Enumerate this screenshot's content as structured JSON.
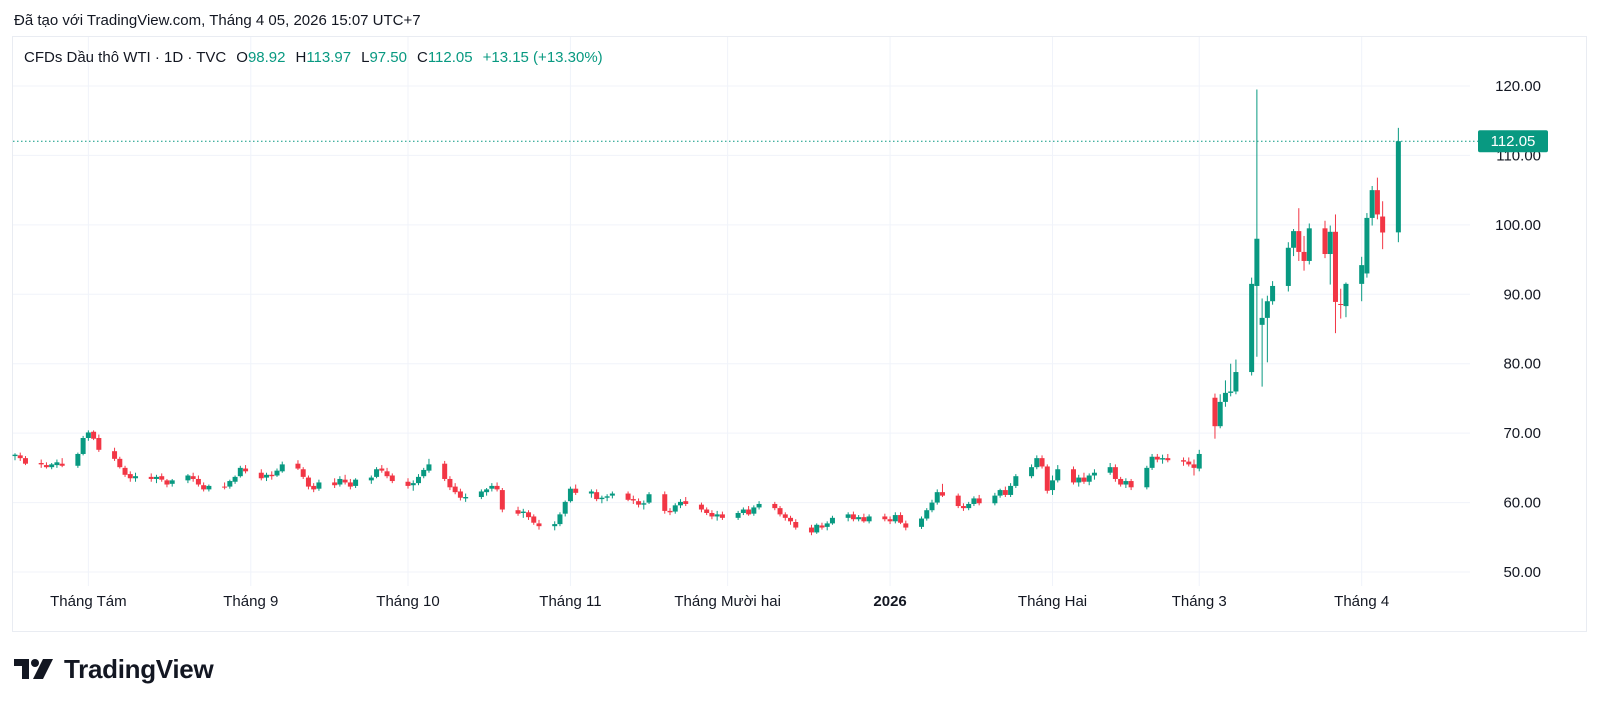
{
  "caption": "Đã tạo với TradingView.com, Tháng 4 05, 2026 15:07 UTC+7",
  "legend": {
    "symbol": "CFDs Dầu thô WTI · 1D · TVC",
    "open_label": "O",
    "open": "98.92",
    "high_label": "H",
    "high": "113.97",
    "low_label": "L",
    "low": "97.50",
    "close_label": "C",
    "close": "112.05",
    "change": "+13.15 (+13.30%)"
  },
  "last_price_label": "112.05",
  "brand": "TradingView",
  "colors": {
    "up": "#089981",
    "down": "#f23645",
    "grid": "#f0f3fa",
    "text": "#131722"
  },
  "chart_data": {
    "type": "candlestick",
    "ylim": [
      48,
      123
    ],
    "y_ticks": [
      "50.00",
      "60.00",
      "70.00",
      "80.00",
      "90.00",
      "100.00",
      "110.00",
      "120.00"
    ],
    "x_labels": [
      {
        "text": "Tháng Tám",
        "day": 14,
        "bold": false
      },
      {
        "text": "Tháng 9",
        "day": 45,
        "bold": false
      },
      {
        "text": "Tháng 10",
        "day": 75,
        "bold": false
      },
      {
        "text": "Tháng 11",
        "day": 106,
        "bold": false
      },
      {
        "text": "Tháng Mười hai",
        "day": 136,
        "bold": false
      },
      {
        "text": "2026",
        "day": 167,
        "bold": true
      },
      {
        "text": "Tháng Hai",
        "day": 198,
        "bold": false
      },
      {
        "text": "Tháng 3",
        "day": 226,
        "bold": false
      },
      {
        "text": "Tháng 4",
        "day": 257,
        "bold": false
      }
    ],
    "last_close": 112.05,
    "candles": [
      [
        0,
        66.7,
        67.1,
        66.1,
        66.9
      ],
      [
        1,
        66.8,
        67.2,
        66.0,
        66.4
      ],
      [
        2,
        66.4,
        66.7,
        65.4,
        65.6
      ],
      [
        5,
        65.7,
        66.2,
        65.0,
        65.5
      ],
      [
        6,
        65.4,
        65.8,
        64.9,
        65.1
      ],
      [
        7,
        65.1,
        65.7,
        64.8,
        65.5
      ],
      [
        8,
        65.4,
        66.2,
        65.0,
        65.8
      ],
      [
        9,
        65.6,
        66.4,
        65.1,
        65.3
      ],
      [
        12,
        65.3,
        67.2,
        65.0,
        67.0
      ],
      [
        13,
        67.0,
        69.6,
        66.8,
        69.3
      ],
      [
        14,
        69.3,
        70.4,
        68.9,
        70.1
      ],
      [
        15,
        70.2,
        70.4,
        69.0,
        69.2
      ],
      [
        16,
        69.3,
        69.8,
        67.3,
        67.6
      ],
      [
        19,
        67.4,
        67.9,
        66.0,
        66.3
      ],
      [
        20,
        66.3,
        66.6,
        64.9,
        65.1
      ],
      [
        21,
        65.0,
        65.3,
        63.7,
        64.0
      ],
      [
        22,
        64.1,
        64.5,
        63.0,
        63.5
      ],
      [
        23,
        63.5,
        64.3,
        63.0,
        63.8
      ],
      [
        26,
        63.7,
        64.2,
        63.0,
        63.4
      ],
      [
        27,
        63.4,
        64.0,
        62.8,
        63.7
      ],
      [
        28,
        63.8,
        64.2,
        63.0,
        63.3
      ],
      [
        29,
        63.2,
        63.4,
        62.2,
        62.6
      ],
      [
        30,
        62.7,
        63.4,
        62.3,
        63.2
      ],
      [
        33,
        63.2,
        64.1,
        62.8,
        63.9
      ],
      [
        34,
        63.8,
        64.3,
        63.0,
        63.4
      ],
      [
        35,
        63.4,
        63.9,
        62.3,
        62.6
      ],
      [
        36,
        62.5,
        62.9,
        61.6,
        61.9
      ],
      [
        37,
        61.9,
        62.6,
        61.6,
        62.4
      ],
      [
        40,
        62.3,
        62.9,
        61.9,
        62.2
      ],
      [
        41,
        62.3,
        63.3,
        62.0,
        63.1
      ],
      [
        42,
        63.0,
        63.9,
        62.7,
        63.7
      ],
      [
        43,
        63.8,
        65.3,
        63.6,
        65.0
      ],
      [
        44,
        64.9,
        65.4,
        64.2,
        64.5
      ],
      [
        47,
        64.3,
        64.8,
        63.2,
        63.5
      ],
      [
        48,
        63.6,
        64.3,
        63.1,
        64.0
      ],
      [
        49,
        64.0,
        64.5,
        63.3,
        63.8
      ],
      [
        50,
        63.9,
        64.9,
        63.7,
        64.6
      ],
      [
        51,
        64.5,
        65.9,
        64.3,
        65.5
      ],
      [
        54,
        65.6,
        66.1,
        64.7,
        64.9
      ],
      [
        55,
        64.8,
        65.1,
        63.4,
        63.7
      ],
      [
        56,
        63.6,
        63.9,
        61.9,
        62.3
      ],
      [
        57,
        62.4,
        62.8,
        61.5,
        61.9
      ],
      [
        58,
        62.0,
        63.3,
        61.7,
        62.9
      ],
      [
        61,
        62.9,
        63.5,
        62.1,
        62.5
      ],
      [
        62,
        62.6,
        63.8,
        62.3,
        63.4
      ],
      [
        63,
        63.3,
        64.0,
        62.6,
        62.9
      ],
      [
        64,
        62.9,
        63.4,
        61.9,
        62.3
      ],
      [
        65,
        62.4,
        63.5,
        62.1,
        63.3
      ],
      [
        68,
        63.2,
        63.9,
        62.7,
        63.6
      ],
      [
        69,
        63.7,
        65.1,
        63.5,
        64.8
      ],
      [
        70,
        64.9,
        65.4,
        64.3,
        64.6
      ],
      [
        71,
        64.5,
        65.0,
        63.5,
        63.8
      ],
      [
        72,
        63.9,
        64.2,
        62.8,
        63.1
      ],
      [
        75,
        63.0,
        63.5,
        62.0,
        62.4
      ],
      [
        76,
        62.5,
        63.2,
        61.7,
        62.8
      ],
      [
        77,
        62.8,
        64.1,
        62.5,
        63.7
      ],
      [
        78,
        63.8,
        65.0,
        63.5,
        64.7
      ],
      [
        79,
        64.6,
        66.3,
        64.3,
        65.5
      ],
      [
        82,
        65.6,
        66.0,
        63.1,
        63.4
      ],
      [
        83,
        63.4,
        63.8,
        61.8,
        62.2
      ],
      [
        84,
        62.3,
        62.8,
        61.2,
        61.5
      ],
      [
        85,
        61.6,
        62.0,
        60.3,
        60.7
      ],
      [
        86,
        60.6,
        61.3,
        60.1,
        60.8
      ],
      [
        89,
        60.8,
        61.9,
        60.5,
        61.6
      ],
      [
        90,
        61.5,
        62.1,
        61.0,
        61.9
      ],
      [
        91,
        62.0,
        62.8,
        61.6,
        62.4
      ],
      [
        92,
        62.4,
        62.9,
        61.6,
        61.9
      ],
      [
        93,
        61.8,
        62.1,
        58.6,
        59.0
      ],
      [
        96,
        58.9,
        59.4,
        58.1,
        58.4
      ],
      [
        97,
        58.5,
        59.1,
        57.8,
        58.7
      ],
      [
        98,
        58.6,
        58.9,
        57.5,
        57.9
      ],
      [
        99,
        58.0,
        58.3,
        56.8,
        57.1
      ],
      [
        100,
        57.0,
        57.5,
        56.1,
        56.6
      ],
      [
        103,
        56.6,
        57.3,
        56.0,
        56.9
      ],
      [
        104,
        56.9,
        58.6,
        56.6,
        58.3
      ],
      [
        105,
        58.4,
        60.3,
        58.0,
        60.1
      ],
      [
        106,
        60.2,
        62.3,
        60.0,
        62.0
      ],
      [
        107,
        62.0,
        62.6,
        61.1,
        61.4
      ],
      [
        110,
        61.3,
        61.9,
        60.7,
        61.6
      ],
      [
        111,
        61.5,
        61.9,
        60.2,
        60.5
      ],
      [
        112,
        60.5,
        61.0,
        59.9,
        60.7
      ],
      [
        113,
        60.7,
        61.2,
        60.2,
        60.9
      ],
      [
        114,
        61.0,
        61.6,
        60.6,
        61.3
      ],
      [
        117,
        61.3,
        61.6,
        60.2,
        60.4
      ],
      [
        118,
        60.5,
        61.0,
        59.8,
        60.3
      ],
      [
        119,
        60.2,
        60.6,
        59.3,
        59.7
      ],
      [
        120,
        59.7,
        60.3,
        59.0,
        59.9
      ],
      [
        121,
        60.0,
        61.5,
        59.8,
        61.2
      ],
      [
        124,
        61.2,
        61.6,
        58.4,
        58.8
      ],
      [
        125,
        58.8,
        59.2,
        58.2,
        58.6
      ],
      [
        126,
        58.7,
        59.9,
        58.4,
        59.6
      ],
      [
        127,
        59.6,
        60.5,
        59.2,
        60.1
      ],
      [
        128,
        60.2,
        60.8,
        59.5,
        59.8
      ],
      [
        131,
        59.7,
        60.0,
        58.6,
        59.0
      ],
      [
        132,
        59.0,
        59.3,
        58.2,
        58.5
      ],
      [
        133,
        58.5,
        58.9,
        57.6,
        58.0
      ],
      [
        134,
        58.0,
        58.8,
        57.4,
        58.3
      ],
      [
        135,
        58.3,
        58.7,
        57.5,
        57.8
      ],
      [
        138,
        57.8,
        58.8,
        57.5,
        58.5
      ],
      [
        139,
        58.5,
        59.3,
        58.2,
        59.0
      ],
      [
        140,
        59.0,
        59.5,
        58.1,
        58.3
      ],
      [
        141,
        58.4,
        59.6,
        58.1,
        59.3
      ],
      [
        142,
        59.3,
        60.2,
        59.0,
        59.8
      ],
      [
        145,
        59.8,
        60.1,
        58.9,
        59.2
      ],
      [
        146,
        59.2,
        59.5,
        58.0,
        58.3
      ],
      [
        147,
        58.3,
        58.6,
        57.4,
        57.8
      ],
      [
        148,
        57.8,
        58.1,
        56.8,
        57.3
      ],
      [
        149,
        57.2,
        57.6,
        56.1,
        56.4
      ],
      [
        152,
        56.4,
        56.8,
        55.3,
        55.7
      ],
      [
        153,
        55.7,
        57.0,
        55.5,
        56.8
      ],
      [
        154,
        56.7,
        57.1,
        56.1,
        56.4
      ],
      [
        155,
        56.5,
        57.3,
        56.0,
        57.0
      ],
      [
        156,
        57.0,
        58.1,
        56.8,
        57.8
      ],
      [
        159,
        57.8,
        58.6,
        57.3,
        58.3
      ],
      [
        160,
        58.3,
        58.7,
        57.3,
        57.6
      ],
      [
        161,
        57.6,
        58.2,
        57.3,
        57.9
      ],
      [
        162,
        57.9,
        58.4,
        57.1,
        57.3
      ],
      [
        163,
        57.3,
        58.3,
        57.0,
        58.0
      ],
      [
        166,
        58.0,
        58.4,
        57.3,
        57.6
      ],
      [
        167,
        57.6,
        58.0,
        56.9,
        57.3
      ],
      [
        168,
        57.3,
        58.6,
        57.0,
        58.2
      ],
      [
        169,
        58.2,
        58.6,
        56.9,
        57.1
      ],
      [
        170,
        57.0,
        57.4,
        56.0,
        56.4
      ],
      [
        173,
        56.5,
        58.0,
        56.2,
        57.7
      ],
      [
        174,
        57.7,
        59.2,
        57.4,
        58.9
      ],
      [
        175,
        58.9,
        60.4,
        58.6,
        60.0
      ],
      [
        176,
        60.0,
        61.9,
        59.7,
        61.5
      ],
      [
        177,
        61.5,
        62.7,
        60.8,
        61.0
      ],
      [
        180,
        61.0,
        61.3,
        59.2,
        59.5
      ],
      [
        181,
        59.5,
        59.9,
        58.8,
        59.2
      ],
      [
        182,
        59.2,
        60.1,
        58.9,
        59.8
      ],
      [
        183,
        59.8,
        60.9,
        59.5,
        60.6
      ],
      [
        184,
        60.6,
        61.1,
        59.6,
        59.9
      ],
      [
        187,
        59.9,
        61.4,
        59.6,
        61.0
      ],
      [
        188,
        61.0,
        62.0,
        60.7,
        61.8
      ],
      [
        189,
        61.8,
        62.3,
        60.8,
        61.1
      ],
      [
        190,
        61.1,
        62.8,
        60.8,
        62.4
      ],
      [
        191,
        62.4,
        64.1,
        62.1,
        63.8
      ],
      [
        194,
        63.8,
        65.5,
        63.5,
        65.1
      ],
      [
        195,
        65.1,
        66.8,
        64.8,
        66.4
      ],
      [
        196,
        66.4,
        66.8,
        64.9,
        65.2
      ],
      [
        197,
        65.2,
        65.5,
        61.3,
        61.7
      ],
      [
        198,
        61.8,
        63.9,
        61.1,
        63.2
      ],
      [
        199,
        63.2,
        65.4,
        62.9,
        64.8
      ],
      [
        202,
        64.8,
        65.2,
        62.6,
        62.9
      ],
      [
        203,
        62.9,
        64.0,
        62.3,
        63.6
      ],
      [
        204,
        63.6,
        64.3,
        62.7,
        63.0
      ],
      [
        205,
        63.0,
        64.2,
        62.5,
        63.9
      ],
      [
        206,
        63.9,
        64.8,
        63.3,
        64.3
      ],
      [
        209,
        64.3,
        65.7,
        64.0,
        65.1
      ],
      [
        210,
        65.1,
        65.5,
        63.0,
        63.4
      ],
      [
        211,
        63.4,
        63.7,
        62.3,
        62.6
      ],
      [
        212,
        62.6,
        63.5,
        62.1,
        63.1
      ],
      [
        213,
        63.1,
        63.4,
        61.8,
        62.2
      ],
      [
        216,
        62.2,
        65.3,
        61.9,
        65.0
      ],
      [
        217,
        65.0,
        67.0,
        64.7,
        66.6
      ],
      [
        218,
        66.6,
        67.0,
        65.8,
        66.2
      ],
      [
        219,
        66.2,
        66.9,
        65.6,
        66.4
      ],
      [
        220,
        66.4,
        67.0,
        65.8,
        66.1
      ],
      [
        223,
        66.1,
        66.5,
        65.3,
        65.9
      ],
      [
        224,
        65.9,
        66.5,
        65.2,
        65.5
      ],
      [
        225,
        65.5,
        66.2,
        63.9,
        65.0
      ],
      [
        226,
        64.9,
        67.6,
        64.5,
        67.0
      ],
      [
        229,
        75.1,
        75.7,
        69.2,
        71.0
      ],
      [
        230,
        71.0,
        75.6,
        70.7,
        74.5
      ],
      [
        231,
        74.5,
        77.6,
        73.8,
        75.8
      ],
      [
        232,
        75.8,
        80.0,
        75.3,
        76.0
      ],
      [
        233,
        76.0,
        80.6,
        75.6,
        78.8
      ],
      [
        236,
        78.8,
        92.4,
        78.3,
        91.5
      ],
      [
        237,
        91.2,
        119.5,
        81.0,
        98.0
      ],
      [
        238,
        85.6,
        89.4,
        76.7,
        86.6
      ],
      [
        239,
        86.6,
        89.8,
        80.2,
        89.0
      ],
      [
        240,
        89.0,
        91.9,
        88.5,
        91.2
      ],
      [
        243,
        91.2,
        97.5,
        90.4,
        96.7
      ],
      [
        244,
        96.7,
        99.4,
        95.5,
        99.1
      ],
      [
        245,
        99.1,
        102.4,
        94.8,
        96.1
      ],
      [
        246,
        96.1,
        98.4,
        93.4,
        94.8
      ],
      [
        247,
        94.8,
        100.2,
        94.3,
        99.5
      ],
      [
        250,
        99.5,
        100.6,
        95.2,
        95.8
      ],
      [
        251,
        95.8,
        99.9,
        91.4,
        99.0
      ],
      [
        252,
        99.0,
        101.5,
        84.4,
        88.9
      ],
      [
        253,
        88.6,
        90.8,
        86.5,
        88.5
      ],
      [
        254,
        88.3,
        91.7,
        86.7,
        91.5
      ],
      [
        257,
        91.5,
        95.4,
        89.0,
        94.2
      ],
      [
        258,
        93.0,
        101.7,
        92.4,
        101.0
      ],
      [
        259,
        101.0,
        105.6,
        99.9,
        105.0
      ],
      [
        260,
        105.0,
        106.8,
        100.8,
        101.5
      ],
      [
        261,
        101.2,
        103.4,
        96.5,
        98.9
      ],
      [
        264,
        98.92,
        113.97,
        97.5,
        112.05
      ]
    ]
  }
}
